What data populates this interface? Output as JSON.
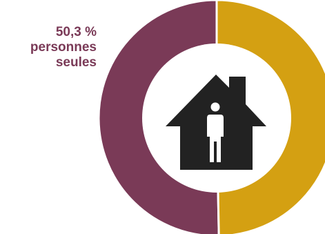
{
  "chart_data": {
    "type": "pie",
    "style": "donut",
    "slices": [
      {
        "label": "personnes seules",
        "value": 50.3,
        "color": "#7a3a57"
      },
      {
        "label": "",
        "value": 49.7,
        "color": "#d4a012"
      }
    ],
    "annotation": {
      "value": "50,3 %",
      "line1": "personnes",
      "line2": "seules"
    },
    "center_icon": "house-with-person-icon"
  }
}
